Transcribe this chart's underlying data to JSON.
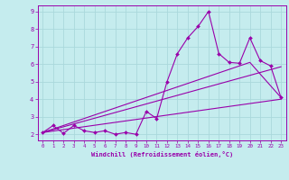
{
  "xlabel": "Windchill (Refroidissement éolien,°C)",
  "ylabel": "",
  "xlim": [
    -0.5,
    23.5
  ],
  "ylim": [
    1.65,
    9.35
  ],
  "xticks": [
    0,
    1,
    2,
    3,
    4,
    5,
    6,
    7,
    8,
    9,
    10,
    11,
    12,
    13,
    14,
    15,
    16,
    17,
    18,
    19,
    20,
    21,
    22,
    23
  ],
  "yticks": [
    2,
    3,
    4,
    5,
    6,
    7,
    8,
    9
  ],
  "background_color": "#c5ecee",
  "line_color": "#9900aa",
  "grid_color": "#aad8dc",
  "data_x": [
    0,
    1,
    2,
    3,
    4,
    5,
    6,
    7,
    8,
    9,
    10,
    11,
    12,
    13,
    14,
    15,
    16,
    17,
    18,
    19,
    20,
    21,
    22,
    23
  ],
  "data_y": [
    2.1,
    2.5,
    2.05,
    2.5,
    2.2,
    2.1,
    2.2,
    2.0,
    2.1,
    2.0,
    3.3,
    2.9,
    5.0,
    6.6,
    7.5,
    8.15,
    9.0,
    6.6,
    6.1,
    6.05,
    7.5,
    6.2,
    5.9,
    4.1
  ],
  "trend1_x": [
    0,
    23
  ],
  "trend1_y": [
    2.1,
    4.0
  ],
  "trend2_x": [
    0,
    23
  ],
  "trend2_y": [
    2.1,
    5.85
  ],
  "trend3_x": [
    0,
    20,
    23
  ],
  "trend3_y": [
    2.1,
    6.1,
    4.1
  ]
}
